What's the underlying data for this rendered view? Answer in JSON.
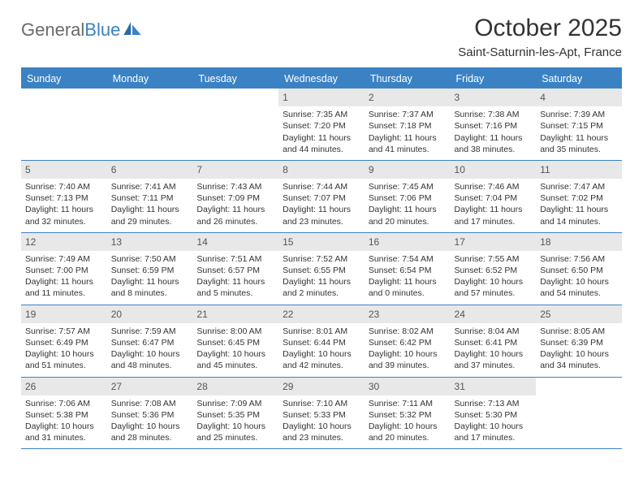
{
  "logo": {
    "word1": "General",
    "word2": "Blue"
  },
  "title": "October 2025",
  "location": "Saint-Saturnin-les-Apt, France",
  "colors": {
    "header_bg": "#3b82c4",
    "header_text": "#ffffff",
    "daynum_bg": "#e8e8e8",
    "text": "#333333"
  },
  "day_labels": [
    "Sunday",
    "Monday",
    "Tuesday",
    "Wednesday",
    "Thursday",
    "Friday",
    "Saturday"
  ],
  "weeks": [
    [
      {
        "n": "",
        "sr": "",
        "ss": "",
        "dl1": "",
        "dl2": ""
      },
      {
        "n": "",
        "sr": "",
        "ss": "",
        "dl1": "",
        "dl2": ""
      },
      {
        "n": "",
        "sr": "",
        "ss": "",
        "dl1": "",
        "dl2": ""
      },
      {
        "n": "1",
        "sr": "Sunrise: 7:35 AM",
        "ss": "Sunset: 7:20 PM",
        "dl1": "Daylight: 11 hours",
        "dl2": "and 44 minutes."
      },
      {
        "n": "2",
        "sr": "Sunrise: 7:37 AM",
        "ss": "Sunset: 7:18 PM",
        "dl1": "Daylight: 11 hours",
        "dl2": "and 41 minutes."
      },
      {
        "n": "3",
        "sr": "Sunrise: 7:38 AM",
        "ss": "Sunset: 7:16 PM",
        "dl1": "Daylight: 11 hours",
        "dl2": "and 38 minutes."
      },
      {
        "n": "4",
        "sr": "Sunrise: 7:39 AM",
        "ss": "Sunset: 7:15 PM",
        "dl1": "Daylight: 11 hours",
        "dl2": "and 35 minutes."
      }
    ],
    [
      {
        "n": "5",
        "sr": "Sunrise: 7:40 AM",
        "ss": "Sunset: 7:13 PM",
        "dl1": "Daylight: 11 hours",
        "dl2": "and 32 minutes."
      },
      {
        "n": "6",
        "sr": "Sunrise: 7:41 AM",
        "ss": "Sunset: 7:11 PM",
        "dl1": "Daylight: 11 hours",
        "dl2": "and 29 minutes."
      },
      {
        "n": "7",
        "sr": "Sunrise: 7:43 AM",
        "ss": "Sunset: 7:09 PM",
        "dl1": "Daylight: 11 hours",
        "dl2": "and 26 minutes."
      },
      {
        "n": "8",
        "sr": "Sunrise: 7:44 AM",
        "ss": "Sunset: 7:07 PM",
        "dl1": "Daylight: 11 hours",
        "dl2": "and 23 minutes."
      },
      {
        "n": "9",
        "sr": "Sunrise: 7:45 AM",
        "ss": "Sunset: 7:06 PM",
        "dl1": "Daylight: 11 hours",
        "dl2": "and 20 minutes."
      },
      {
        "n": "10",
        "sr": "Sunrise: 7:46 AM",
        "ss": "Sunset: 7:04 PM",
        "dl1": "Daylight: 11 hours",
        "dl2": "and 17 minutes."
      },
      {
        "n": "11",
        "sr": "Sunrise: 7:47 AM",
        "ss": "Sunset: 7:02 PM",
        "dl1": "Daylight: 11 hours",
        "dl2": "and 14 minutes."
      }
    ],
    [
      {
        "n": "12",
        "sr": "Sunrise: 7:49 AM",
        "ss": "Sunset: 7:00 PM",
        "dl1": "Daylight: 11 hours",
        "dl2": "and 11 minutes."
      },
      {
        "n": "13",
        "sr": "Sunrise: 7:50 AM",
        "ss": "Sunset: 6:59 PM",
        "dl1": "Daylight: 11 hours",
        "dl2": "and 8 minutes."
      },
      {
        "n": "14",
        "sr": "Sunrise: 7:51 AM",
        "ss": "Sunset: 6:57 PM",
        "dl1": "Daylight: 11 hours",
        "dl2": "and 5 minutes."
      },
      {
        "n": "15",
        "sr": "Sunrise: 7:52 AM",
        "ss": "Sunset: 6:55 PM",
        "dl1": "Daylight: 11 hours",
        "dl2": "and 2 minutes."
      },
      {
        "n": "16",
        "sr": "Sunrise: 7:54 AM",
        "ss": "Sunset: 6:54 PM",
        "dl1": "Daylight: 11 hours",
        "dl2": "and 0 minutes."
      },
      {
        "n": "17",
        "sr": "Sunrise: 7:55 AM",
        "ss": "Sunset: 6:52 PM",
        "dl1": "Daylight: 10 hours",
        "dl2": "and 57 minutes."
      },
      {
        "n": "18",
        "sr": "Sunrise: 7:56 AM",
        "ss": "Sunset: 6:50 PM",
        "dl1": "Daylight: 10 hours",
        "dl2": "and 54 minutes."
      }
    ],
    [
      {
        "n": "19",
        "sr": "Sunrise: 7:57 AM",
        "ss": "Sunset: 6:49 PM",
        "dl1": "Daylight: 10 hours",
        "dl2": "and 51 minutes."
      },
      {
        "n": "20",
        "sr": "Sunrise: 7:59 AM",
        "ss": "Sunset: 6:47 PM",
        "dl1": "Daylight: 10 hours",
        "dl2": "and 48 minutes."
      },
      {
        "n": "21",
        "sr": "Sunrise: 8:00 AM",
        "ss": "Sunset: 6:45 PM",
        "dl1": "Daylight: 10 hours",
        "dl2": "and 45 minutes."
      },
      {
        "n": "22",
        "sr": "Sunrise: 8:01 AM",
        "ss": "Sunset: 6:44 PM",
        "dl1": "Daylight: 10 hours",
        "dl2": "and 42 minutes."
      },
      {
        "n": "23",
        "sr": "Sunrise: 8:02 AM",
        "ss": "Sunset: 6:42 PM",
        "dl1": "Daylight: 10 hours",
        "dl2": "and 39 minutes."
      },
      {
        "n": "24",
        "sr": "Sunrise: 8:04 AM",
        "ss": "Sunset: 6:41 PM",
        "dl1": "Daylight: 10 hours",
        "dl2": "and 37 minutes."
      },
      {
        "n": "25",
        "sr": "Sunrise: 8:05 AM",
        "ss": "Sunset: 6:39 PM",
        "dl1": "Daylight: 10 hours",
        "dl2": "and 34 minutes."
      }
    ],
    [
      {
        "n": "26",
        "sr": "Sunrise: 7:06 AM",
        "ss": "Sunset: 5:38 PM",
        "dl1": "Daylight: 10 hours",
        "dl2": "and 31 minutes."
      },
      {
        "n": "27",
        "sr": "Sunrise: 7:08 AM",
        "ss": "Sunset: 5:36 PM",
        "dl1": "Daylight: 10 hours",
        "dl2": "and 28 minutes."
      },
      {
        "n": "28",
        "sr": "Sunrise: 7:09 AM",
        "ss": "Sunset: 5:35 PM",
        "dl1": "Daylight: 10 hours",
        "dl2": "and 25 minutes."
      },
      {
        "n": "29",
        "sr": "Sunrise: 7:10 AM",
        "ss": "Sunset: 5:33 PM",
        "dl1": "Daylight: 10 hours",
        "dl2": "and 23 minutes."
      },
      {
        "n": "30",
        "sr": "Sunrise: 7:11 AM",
        "ss": "Sunset: 5:32 PM",
        "dl1": "Daylight: 10 hours",
        "dl2": "and 20 minutes."
      },
      {
        "n": "31",
        "sr": "Sunrise: 7:13 AM",
        "ss": "Sunset: 5:30 PM",
        "dl1": "Daylight: 10 hours",
        "dl2": "and 17 minutes."
      },
      {
        "n": "",
        "sr": "",
        "ss": "",
        "dl1": "",
        "dl2": ""
      }
    ]
  ]
}
